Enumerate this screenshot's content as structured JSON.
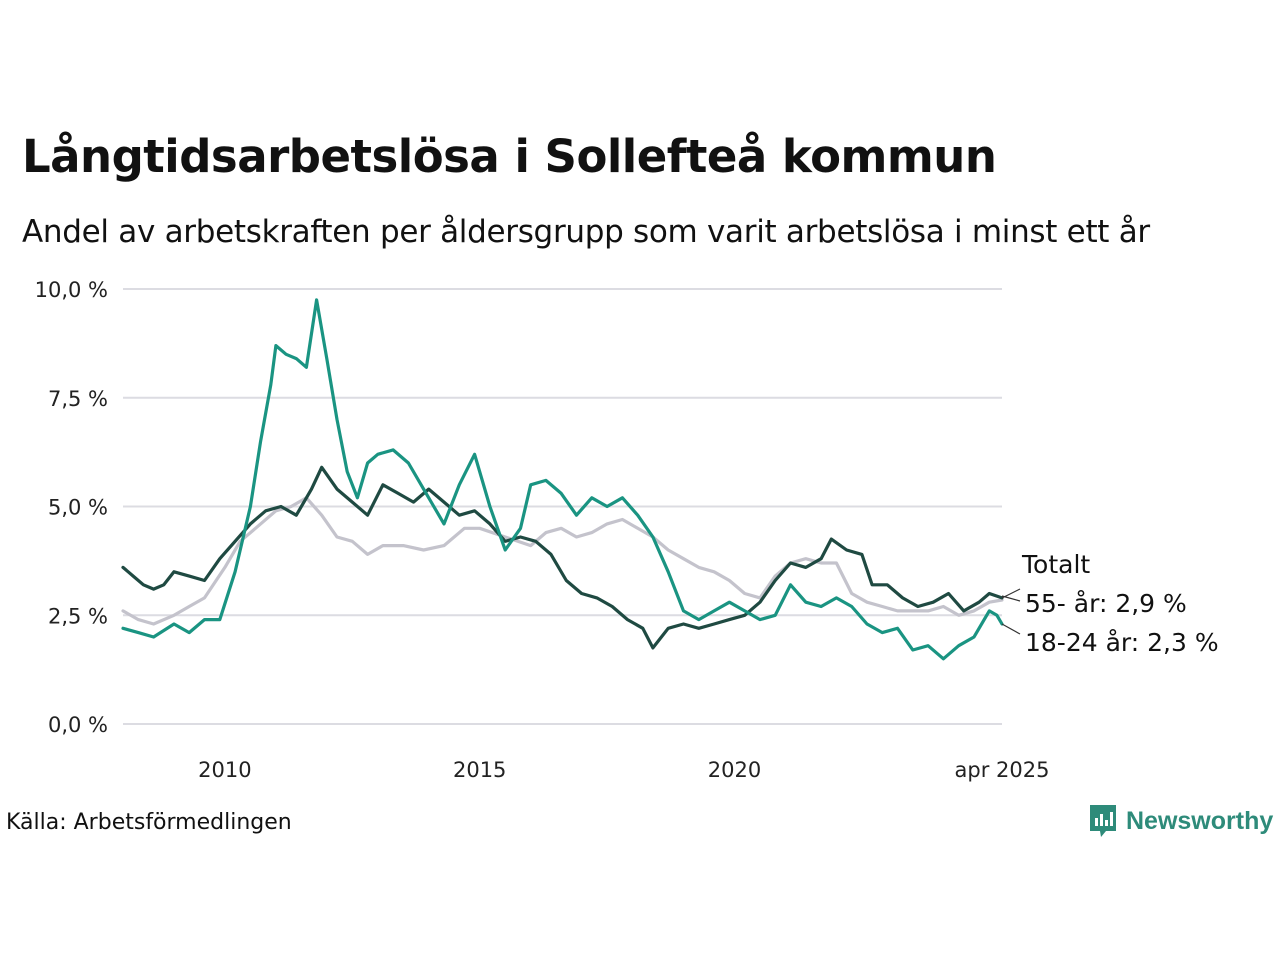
{
  "title": "Långtidsarbetslösa i Sollefteå kommun",
  "subtitle": "Andel av arbetskraften per åldersgrupp som varit arbetslösa i minst ett år",
  "source": "Källa: Arbetsförmedlingen",
  "brand": "Newsworthy",
  "colors": {
    "total": "#c4c3cc",
    "age55": "#1f4a42",
    "age18_24": "#1a9482",
    "grid": "#dcdce2",
    "brand": "#2e8b7a"
  },
  "chart_data": {
    "type": "line",
    "ylim": [
      0,
      10
    ],
    "xlim": [
      2008.0,
      2025.25
    ],
    "y_ticks": [
      {
        "value": 0,
        "label": "0,0 %"
      },
      {
        "value": 2.5,
        "label": "2,5 %"
      },
      {
        "value": 5,
        "label": "5,0 %"
      },
      {
        "value": 7.5,
        "label": "7,5 %"
      },
      {
        "value": 10,
        "label": "10,0 %"
      }
    ],
    "x_ticks": [
      {
        "value": 2010,
        "label": "2010"
      },
      {
        "value": 2015,
        "label": "2015"
      },
      {
        "value": 2020,
        "label": "2020"
      },
      {
        "value": 2025.25,
        "label": "apr 2025"
      }
    ],
    "grid": true,
    "series": [
      {
        "key": "total",
        "name": "Totalt",
        "points": [
          [
            2008.0,
            2.6
          ],
          [
            2008.3,
            2.4
          ],
          [
            2008.6,
            2.3
          ],
          [
            2009.0,
            2.5
          ],
          [
            2009.3,
            2.7
          ],
          [
            2009.6,
            2.9
          ],
          [
            2010.0,
            3.6
          ],
          [
            2010.3,
            4.2
          ],
          [
            2010.6,
            4.5
          ],
          [
            2011.0,
            4.9
          ],
          [
            2011.3,
            5.0
          ],
          [
            2011.6,
            5.2
          ],
          [
            2011.9,
            4.8
          ],
          [
            2012.2,
            4.3
          ],
          [
            2012.5,
            4.2
          ],
          [
            2012.8,
            3.9
          ],
          [
            2013.1,
            4.1
          ],
          [
            2013.5,
            4.1
          ],
          [
            2013.9,
            4.0
          ],
          [
            2014.3,
            4.1
          ],
          [
            2014.7,
            4.5
          ],
          [
            2015.0,
            4.5
          ],
          [
            2015.5,
            4.3
          ],
          [
            2016.0,
            4.1
          ],
          [
            2016.3,
            4.4
          ],
          [
            2016.6,
            4.5
          ],
          [
            2016.9,
            4.3
          ],
          [
            2017.2,
            4.4
          ],
          [
            2017.5,
            4.6
          ],
          [
            2017.8,
            4.7
          ],
          [
            2018.1,
            4.5
          ],
          [
            2018.4,
            4.3
          ],
          [
            2018.7,
            4.0
          ],
          [
            2019.0,
            3.8
          ],
          [
            2019.3,
            3.6
          ],
          [
            2019.6,
            3.5
          ],
          [
            2019.9,
            3.3
          ],
          [
            2020.2,
            3.0
          ],
          [
            2020.5,
            2.9
          ],
          [
            2020.8,
            3.4
          ],
          [
            2021.1,
            3.7
          ],
          [
            2021.4,
            3.8
          ],
          [
            2021.7,
            3.7
          ],
          [
            2022.0,
            3.7
          ],
          [
            2022.3,
            3.0
          ],
          [
            2022.6,
            2.8
          ],
          [
            2022.9,
            2.7
          ],
          [
            2023.2,
            2.6
          ],
          [
            2023.5,
            2.6
          ],
          [
            2023.8,
            2.6
          ],
          [
            2024.1,
            2.7
          ],
          [
            2024.4,
            2.5
          ],
          [
            2024.7,
            2.6
          ],
          [
            2025.0,
            2.8
          ],
          [
            2025.25,
            2.85
          ]
        ]
      },
      {
        "key": "age55",
        "name": "55- år",
        "end_value_label": "2,9 %",
        "points": [
          [
            2008.0,
            3.6
          ],
          [
            2008.2,
            3.4
          ],
          [
            2008.4,
            3.2
          ],
          [
            2008.6,
            3.1
          ],
          [
            2008.8,
            3.2
          ],
          [
            2009.0,
            3.5
          ],
          [
            2009.3,
            3.4
          ],
          [
            2009.6,
            3.3
          ],
          [
            2009.9,
            3.8
          ],
          [
            2010.2,
            4.2
          ],
          [
            2010.5,
            4.6
          ],
          [
            2010.8,
            4.9
          ],
          [
            2011.1,
            5.0
          ],
          [
            2011.4,
            4.8
          ],
          [
            2011.7,
            5.4
          ],
          [
            2011.9,
            5.9
          ],
          [
            2012.2,
            5.4
          ],
          [
            2012.5,
            5.1
          ],
          [
            2012.8,
            4.8
          ],
          [
            2013.1,
            5.5
          ],
          [
            2013.4,
            5.3
          ],
          [
            2013.7,
            5.1
          ],
          [
            2014.0,
            5.4
          ],
          [
            2014.3,
            5.1
          ],
          [
            2014.6,
            4.8
          ],
          [
            2014.9,
            4.9
          ],
          [
            2015.2,
            4.6
          ],
          [
            2015.5,
            4.2
          ],
          [
            2015.8,
            4.3
          ],
          [
            2016.1,
            4.2
          ],
          [
            2016.4,
            3.9
          ],
          [
            2016.7,
            3.3
          ],
          [
            2017.0,
            3.0
          ],
          [
            2017.3,
            2.9
          ],
          [
            2017.6,
            2.7
          ],
          [
            2017.9,
            2.4
          ],
          [
            2018.2,
            2.2
          ],
          [
            2018.4,
            1.75
          ],
          [
            2018.7,
            2.2
          ],
          [
            2019.0,
            2.3
          ],
          [
            2019.3,
            2.2
          ],
          [
            2019.6,
            2.3
          ],
          [
            2019.9,
            2.4
          ],
          [
            2020.2,
            2.5
          ],
          [
            2020.5,
            2.8
          ],
          [
            2020.8,
            3.3
          ],
          [
            2021.1,
            3.7
          ],
          [
            2021.4,
            3.6
          ],
          [
            2021.7,
            3.8
          ],
          [
            2021.9,
            4.25
          ],
          [
            2022.2,
            4.0
          ],
          [
            2022.5,
            3.9
          ],
          [
            2022.7,
            3.2
          ],
          [
            2023.0,
            3.2
          ],
          [
            2023.3,
            2.9
          ],
          [
            2023.6,
            2.7
          ],
          [
            2023.9,
            2.8
          ],
          [
            2024.2,
            3.0
          ],
          [
            2024.5,
            2.6
          ],
          [
            2024.8,
            2.8
          ],
          [
            2025.0,
            3.0
          ],
          [
            2025.25,
            2.9
          ]
        ]
      },
      {
        "key": "age18_24",
        "name": "18-24 år",
        "end_value_label": "2,3 %",
        "points": [
          [
            2008.0,
            2.2
          ],
          [
            2008.3,
            2.1
          ],
          [
            2008.6,
            2.0
          ],
          [
            2009.0,
            2.3
          ],
          [
            2009.3,
            2.1
          ],
          [
            2009.6,
            2.4
          ],
          [
            2009.9,
            2.4
          ],
          [
            2010.2,
            3.5
          ],
          [
            2010.5,
            5.0
          ],
          [
            2010.7,
            6.5
          ],
          [
            2010.9,
            7.8
          ],
          [
            2011.0,
            8.7
          ],
          [
            2011.2,
            8.5
          ],
          [
            2011.4,
            8.4
          ],
          [
            2011.6,
            8.2
          ],
          [
            2011.8,
            9.75
          ],
          [
            2012.0,
            8.4
          ],
          [
            2012.2,
            7.0
          ],
          [
            2012.4,
            5.8
          ],
          [
            2012.6,
            5.2
          ],
          [
            2012.8,
            6.0
          ],
          [
            2013.0,
            6.2
          ],
          [
            2013.3,
            6.3
          ],
          [
            2013.6,
            6.0
          ],
          [
            2013.9,
            5.4
          ],
          [
            2014.1,
            5.0
          ],
          [
            2014.3,
            4.6
          ],
          [
            2014.6,
            5.5
          ],
          [
            2014.9,
            6.2
          ],
          [
            2015.2,
            5.0
          ],
          [
            2015.5,
            4.0
          ],
          [
            2015.8,
            4.5
          ],
          [
            2016.0,
            5.5
          ],
          [
            2016.3,
            5.6
          ],
          [
            2016.6,
            5.3
          ],
          [
            2016.9,
            4.8
          ],
          [
            2017.2,
            5.2
          ],
          [
            2017.5,
            5.0
          ],
          [
            2017.8,
            5.2
          ],
          [
            2018.1,
            4.8
          ],
          [
            2018.4,
            4.3
          ],
          [
            2018.7,
            3.5
          ],
          [
            2019.0,
            2.6
          ],
          [
            2019.3,
            2.4
          ],
          [
            2019.6,
            2.6
          ],
          [
            2019.9,
            2.8
          ],
          [
            2020.2,
            2.6
          ],
          [
            2020.5,
            2.4
          ],
          [
            2020.8,
            2.5
          ],
          [
            2021.1,
            3.2
          ],
          [
            2021.4,
            2.8
          ],
          [
            2021.7,
            2.7
          ],
          [
            2022.0,
            2.9
          ],
          [
            2022.3,
            2.7
          ],
          [
            2022.6,
            2.3
          ],
          [
            2022.9,
            2.1
          ],
          [
            2023.2,
            2.2
          ],
          [
            2023.5,
            1.7
          ],
          [
            2023.8,
            1.8
          ],
          [
            2024.1,
            1.5
          ],
          [
            2024.4,
            1.8
          ],
          [
            2024.7,
            2.0
          ],
          [
            2024.9,
            2.4
          ],
          [
            2025.0,
            2.6
          ],
          [
            2025.15,
            2.5
          ],
          [
            2025.25,
            2.3
          ]
        ]
      }
    ]
  }
}
